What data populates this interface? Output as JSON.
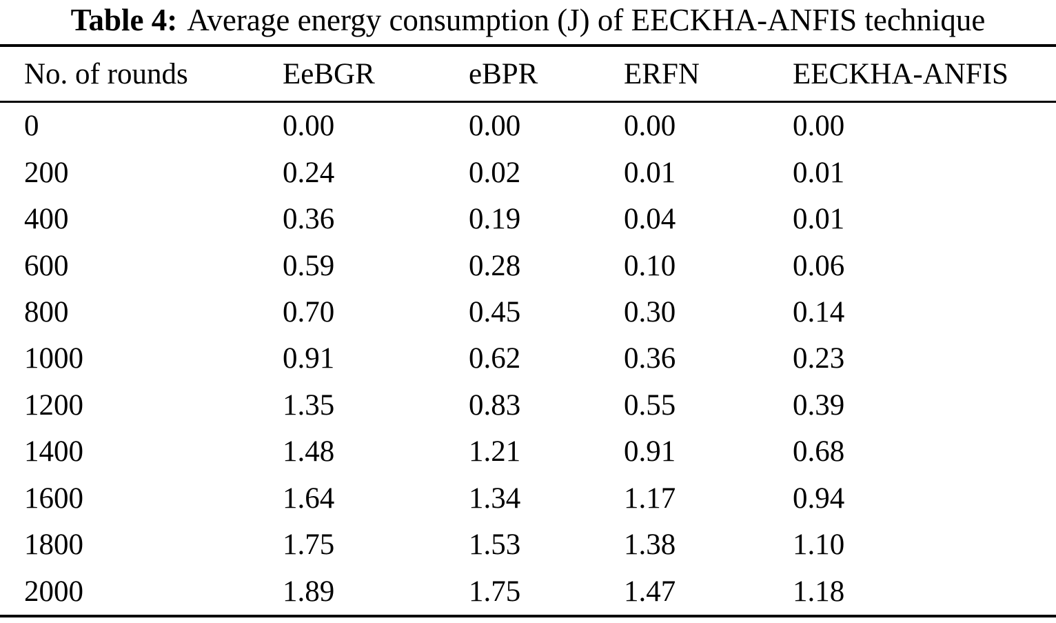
{
  "page": {
    "background": "#ffffff",
    "text_color": "#000000"
  },
  "caption": {
    "label": "Table 4:",
    "text": "Average energy consumption (J) of EECKHA-ANFIS technique"
  },
  "table": {
    "columns": [
      "No. of rounds",
      "EeBGR",
      "eBPR",
      "ERFN",
      "EECKHA-ANFIS"
    ],
    "rows": [
      [
        "0",
        "0.00",
        "0.00",
        "0.00",
        "0.00"
      ],
      [
        "200",
        "0.24",
        "0.02",
        "0.01",
        "0.01"
      ],
      [
        "400",
        "0.36",
        "0.19",
        "0.04",
        "0.01"
      ],
      [
        "600",
        "0.59",
        "0.28",
        "0.10",
        "0.06"
      ],
      [
        "800",
        "0.70",
        "0.45",
        "0.30",
        "0.14"
      ],
      [
        "1000",
        "0.91",
        "0.62",
        "0.36",
        "0.23"
      ],
      [
        "1200",
        "1.35",
        "0.83",
        "0.55",
        "0.39"
      ],
      [
        "1400",
        "1.48",
        "1.21",
        "0.91",
        "0.68"
      ],
      [
        "1600",
        "1.64",
        "1.34",
        "1.17",
        "0.94"
      ],
      [
        "1800",
        "1.75",
        "1.53",
        "1.38",
        "1.10"
      ],
      [
        "2000",
        "1.89",
        "1.75",
        "1.47",
        "1.18"
      ]
    ]
  }
}
